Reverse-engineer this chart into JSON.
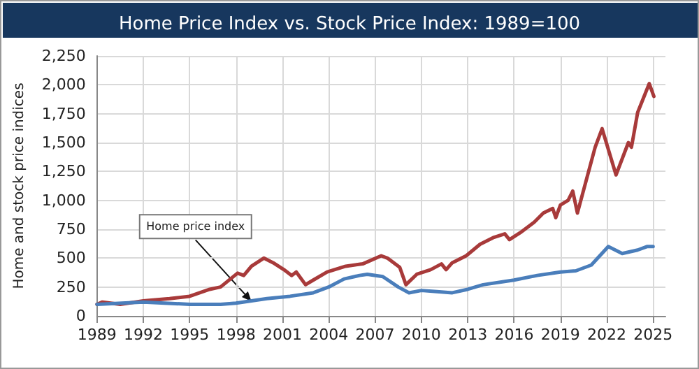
{
  "chart_data": {
    "type": "line",
    "title": "Home Price Index vs. Stock Price Index: 1989=100",
    "ylabel": "Home and stock price indices",
    "xlim": [
      1989,
      2025.8
    ],
    "xticks": [
      1989,
      1992,
      1995,
      1998,
      2001,
      2004,
      2007,
      2010,
      2013,
      2016,
      2019,
      2022,
      2025
    ],
    "ylim": [
      0,
      2250
    ],
    "yticks": [
      0,
      250,
      500,
      750,
      {
        "value": 1000,
        "label": "1,000"
      },
      {
        "value": 1250,
        "label": "1,250"
      },
      {
        "value": 1500,
        "label": "1,500"
      },
      {
        "value": 1750,
        "label": "1,750"
      },
      {
        "value": 2000,
        "label": "2,000"
      },
      {
        "value": 2250,
        "label": "2,250"
      }
    ],
    "grid": true,
    "marker": "none",
    "line_style": "solid",
    "annotations": [
      {
        "text": "Home price index",
        "x": 1999,
        "y": 125
      }
    ],
    "series": [
      {
        "color": "#a83a3a",
        "x": [
          1989,
          1989.35,
          1990.5,
          1992,
          1993.7,
          1995,
          1996.3,
          1997,
          1998.1,
          1998.5,
          1999,
          1999.8,
          2000.4,
          2001.1,
          2001.6,
          2001.9,
          2002.5,
          2003,
          2003.9,
          2005.1,
          2006.2,
          2007.4,
          2007.8,
          2008.6,
          2009,
          2009.7,
          2010.6,
          2011.3,
          2011.6,
          2012,
          2012.9,
          2013.8,
          2014.7,
          2015.4,
          2015.7,
          2016.4,
          2017.3,
          2017.9,
          2018.5,
          2018.7,
          2019,
          2019.5,
          2019.8,
          2020.1,
          2021.25,
          2021.7,
          2022.6,
          2023.4,
          2023.6,
          2024,
          2024.75,
          2025.05
        ],
        "values": [
          100,
          120,
          100,
          130,
          150,
          170,
          230,
          250,
          370,
          350,
          430,
          500,
          460,
          400,
          350,
          380,
          270,
          310,
          380,
          430,
          450,
          520,
          500,
          420,
          270,
          360,
          400,
          450,
          400,
          460,
          520,
          620,
          680,
          710,
          660,
          720,
          810,
          890,
          930,
          850,
          960,
          1000,
          1080,
          890,
          1460,
          1620,
          1220,
          1500,
          1460,
          1760,
          2010,
          1900
        ]
      },
      {
        "color": "#4a7ebb",
        "x": [
          1989,
          1992,
          1995,
          1997,
          1998,
          2000,
          2001.5,
          2003,
          2004,
          2005,
          2006,
          2006.5,
          2007.5,
          2008.5,
          2009.2,
          2010,
          2011,
          2012,
          2013,
          2014,
          2016,
          2017.5,
          2019,
          2020,
          2021,
          2022.1,
          2023,
          2024,
          2024.6,
          2025
        ],
        "values": [
          100,
          120,
          100,
          100,
          110,
          150,
          170,
          200,
          250,
          320,
          350,
          360,
          340,
          250,
          200,
          220,
          210,
          200,
          230,
          270,
          310,
          350,
          380,
          390,
          440,
          600,
          540,
          570,
          600,
          600
        ]
      }
    ]
  }
}
